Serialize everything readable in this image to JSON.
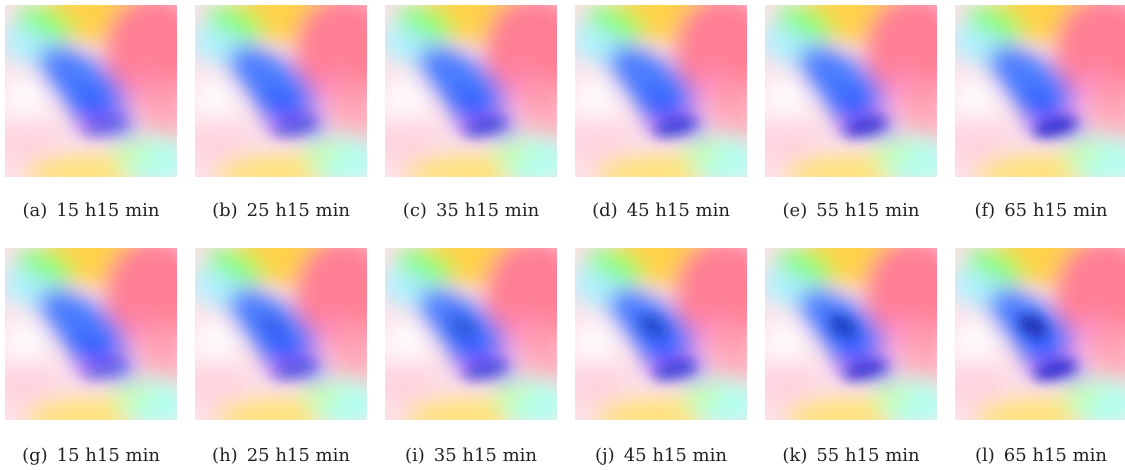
{
  "panels": [
    {
      "label": "(a)",
      "caption": "15 h15 min"
    },
    {
      "label": "(b)",
      "caption": "25 h15 min"
    },
    {
      "label": "(c)",
      "caption": "35 h15 min"
    },
    {
      "label": "(d)",
      "caption": "45 h15 min"
    },
    {
      "label": "(e)",
      "caption": "55 h15 min"
    },
    {
      "label": "(f)",
      "caption": "65 h15 min"
    },
    {
      "label": "(g)",
      "caption": "15 h15 min"
    },
    {
      "label": "(h)",
      "caption": "25 h15 min"
    },
    {
      "label": "(i)",
      "caption": "35 h15 min"
    },
    {
      "label": "(j)",
      "caption": "45 h15 min"
    },
    {
      "label": "(k)",
      "caption": "55 h15 min"
    },
    {
      "label": "(l)",
      "caption": "65 h15 min"
    }
  ]
}
